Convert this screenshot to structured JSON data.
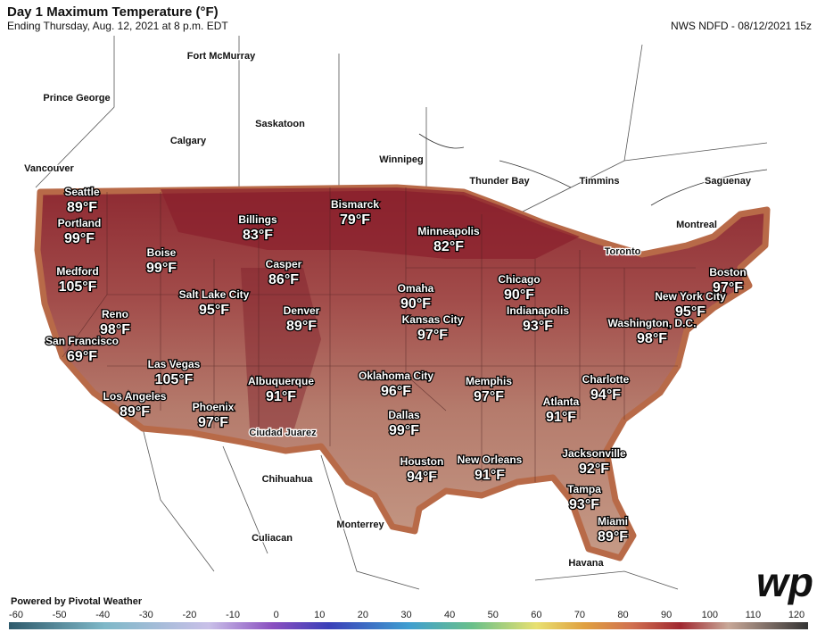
{
  "header": {
    "title": "Day 1 Maximum Temperature (°F)",
    "subtitle": "Ending Thursday, Aug. 12, 2021 at 8 p.m. EDT",
    "source": "NWS NDFD - 08/12/2021 15z"
  },
  "cities": [
    {
      "name": "Seattle",
      "temp": "89°F"
    },
    {
      "name": "Portland",
      "temp": "99°F"
    },
    {
      "name": "Medford",
      "temp": "105°F"
    },
    {
      "name": "Reno",
      "temp": "98°F"
    },
    {
      "name": "San Francisco",
      "temp": "69°F"
    },
    {
      "name": "Los Angeles",
      "temp": "89°F"
    },
    {
      "name": "Boise",
      "temp": "99°F"
    },
    {
      "name": "Billings",
      "temp": "83°F"
    },
    {
      "name": "Casper",
      "temp": "86°F"
    },
    {
      "name": "Salt Lake City",
      "temp": "95°F"
    },
    {
      "name": "Denver",
      "temp": "89°F"
    },
    {
      "name": "Las Vegas",
      "temp": "105°F"
    },
    {
      "name": "Phoenix",
      "temp": "97°F"
    },
    {
      "name": "Albuquerque",
      "temp": "91°F"
    },
    {
      "name": "Bismarck",
      "temp": "79°F"
    },
    {
      "name": "Minneapolis",
      "temp": "82°F"
    },
    {
      "name": "Omaha",
      "temp": "90°F"
    },
    {
      "name": "Kansas City",
      "temp": "97°F"
    },
    {
      "name": "Oklahoma City",
      "temp": "96°F"
    },
    {
      "name": "Dallas",
      "temp": "99°F"
    },
    {
      "name": "Houston",
      "temp": "94°F"
    },
    {
      "name": "New Orleans",
      "temp": "91°F"
    },
    {
      "name": "Memphis",
      "temp": "97°F"
    },
    {
      "name": "Chicago",
      "temp": "90°F"
    },
    {
      "name": "Indianapolis",
      "temp": "93°F"
    },
    {
      "name": "Atlanta",
      "temp": "91°F"
    },
    {
      "name": "Charlotte",
      "temp": "94°F"
    },
    {
      "name": "Jacksonville",
      "temp": "92°F"
    },
    {
      "name": "Tampa",
      "temp": "93°F"
    },
    {
      "name": "Miami",
      "temp": "89°F"
    },
    {
      "name": "Washington, D.C.",
      "temp": "98°F"
    },
    {
      "name": "New York City",
      "temp": "95°F"
    },
    {
      "name": "Boston",
      "temp": "97°F"
    }
  ],
  "places": [
    "Fort McMurray",
    "Prince George",
    "Saskatoon",
    "Calgary",
    "Vancouver",
    "Winnipeg",
    "Thunder Bay",
    "Timmins",
    "Saguenay",
    "Montreal",
    "Toronto",
    "Ciudad Juarez",
    "Chihuahua",
    "Monterrey",
    "Culiacan",
    "Havana"
  ],
  "scale": {
    "range": [
      -60,
      120
    ],
    "ticks": [
      -60,
      -50,
      -40,
      -30,
      -20,
      -10,
      0,
      10,
      20,
      30,
      40,
      50,
      60,
      70,
      80,
      90,
      100,
      110,
      120
    ]
  },
  "footer": {
    "credit": "Powered by Pivotal Weather",
    "logo": "wp"
  }
}
